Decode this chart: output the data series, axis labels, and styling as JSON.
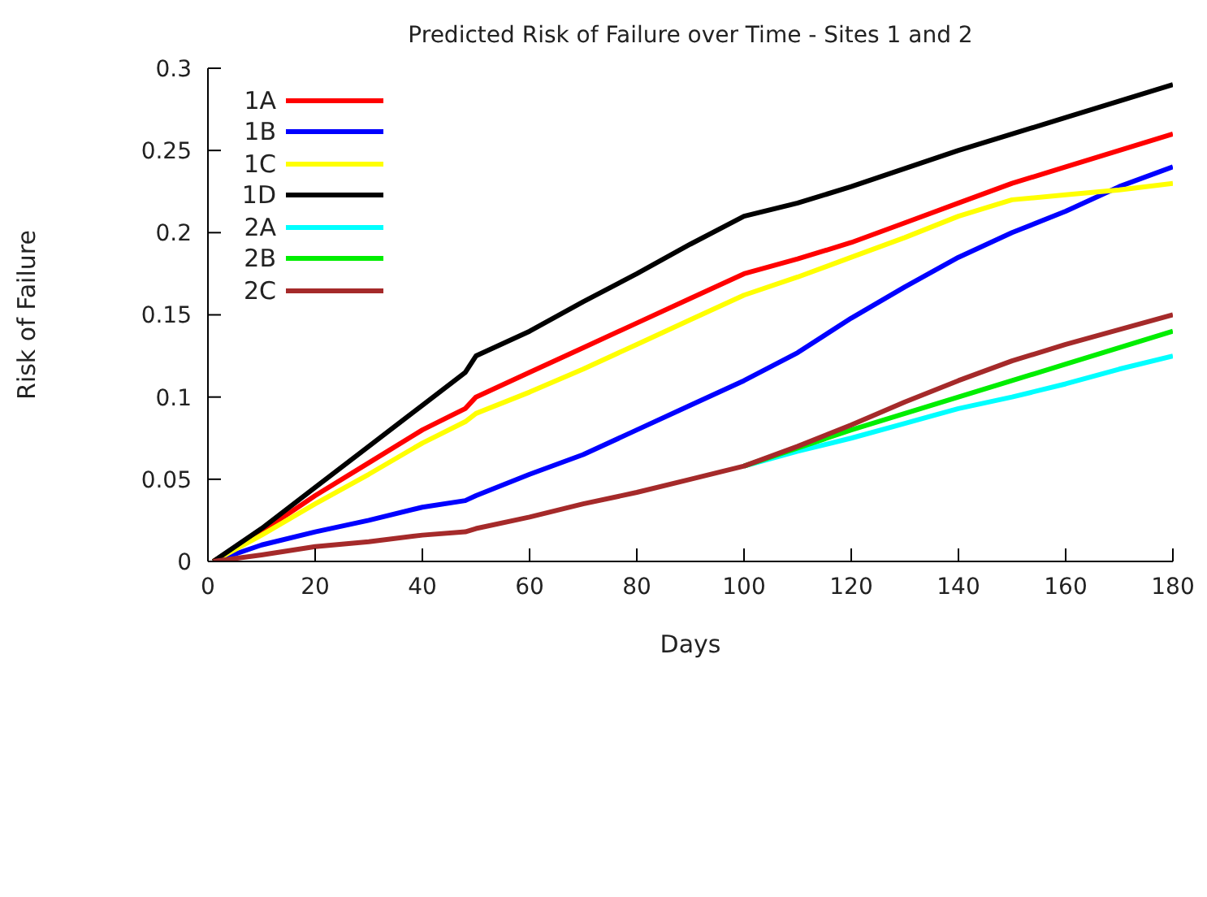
{
  "chart_data": {
    "type": "line",
    "title": "Predicted Risk of Failure over Time - Sites 1 and 2",
    "xlabel": "Days",
    "ylabel": "Risk of Failure",
    "x": [
      1,
      10,
      20,
      30,
      40,
      48,
      50,
      60,
      70,
      80,
      90,
      100,
      110,
      120,
      130,
      140,
      150,
      160,
      170,
      180
    ],
    "series": [
      {
        "name": "1A",
        "color": "#ff0000",
        "values": [
          0,
          0.018,
          0.04,
          0.06,
          0.08,
          0.093,
          0.1,
          0.115,
          0.13,
          0.145,
          0.16,
          0.175,
          0.184,
          0.194,
          0.206,
          0.218,
          0.23,
          0.24,
          0.25,
          0.26
        ]
      },
      {
        "name": "1B",
        "color": "#0000ff",
        "values": [
          0,
          0.01,
          0.018,
          0.025,
          0.033,
          0.037,
          0.04,
          0.053,
          0.065,
          0.08,
          0.095,
          0.11,
          0.127,
          0.148,
          0.167,
          0.185,
          0.2,
          0.213,
          0.228,
          0.24
        ]
      },
      {
        "name": "1C",
        "color": "#ffff00",
        "values": [
          0,
          0.016,
          0.035,
          0.053,
          0.072,
          0.085,
          0.09,
          0.103,
          0.117,
          0.132,
          0.147,
          0.162,
          0.173,
          0.185,
          0.197,
          0.21,
          0.22,
          0.223,
          0.226,
          0.23
        ]
      },
      {
        "name": "1D",
        "color": "#000000",
        "values": [
          0,
          0.02,
          0.045,
          0.07,
          0.095,
          0.115,
          0.125,
          0.14,
          0.158,
          0.175,
          0.193,
          0.21,
          0.218,
          0.228,
          0.239,
          0.25,
          0.26,
          0.27,
          0.28,
          0.29
        ]
      },
      {
        "name": "2A",
        "color": "#00ffff",
        "values": [
          null,
          null,
          null,
          null,
          null,
          null,
          null,
          null,
          null,
          null,
          null,
          0.058,
          0.067,
          0.075,
          0.084,
          0.093,
          0.1,
          0.108,
          0.117,
          0.125
        ]
      },
      {
        "name": "2B",
        "color": "#00ee00",
        "values": [
          null,
          null,
          null,
          null,
          null,
          null,
          null,
          null,
          null,
          null,
          null,
          0.058,
          0.069,
          0.08,
          0.09,
          0.1,
          0.11,
          0.12,
          0.13,
          0.14
        ]
      },
      {
        "name": "2C",
        "color": "#a52a2a",
        "values": [
          0,
          0.004,
          0.009,
          0.012,
          0.016,
          0.018,
          0.02,
          0.027,
          0.035,
          0.042,
          0.05,
          0.058,
          0.07,
          0.083,
          0.097,
          0.11,
          0.122,
          0.132,
          0.141,
          0.15
        ]
      }
    ],
    "xlim": [
      0,
      180
    ],
    "xticks": [
      0,
      20,
      40,
      60,
      80,
      100,
      120,
      140,
      160,
      180
    ],
    "ylim": [
      0,
      0.3
    ],
    "yticks": [
      0,
      0.05,
      0.1,
      0.15,
      0.2,
      0.25,
      0.3
    ],
    "grid": false,
    "legend": "top left",
    "marker": "none",
    "line_style": "solid"
  }
}
